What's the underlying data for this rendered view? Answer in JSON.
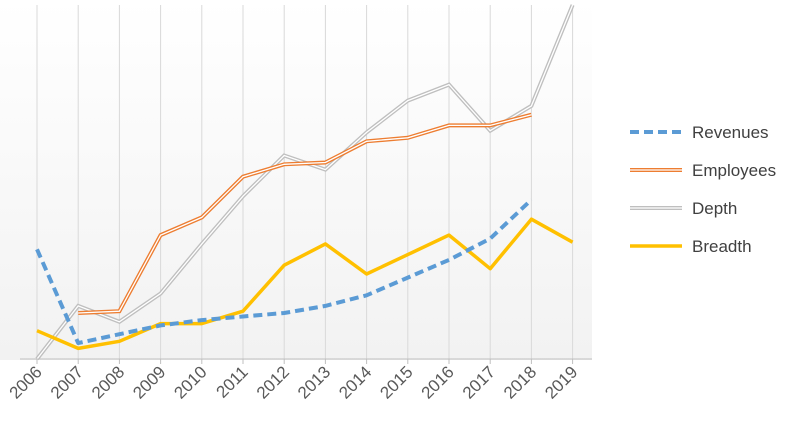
{
  "chart_data": {
    "type": "line",
    "x": [
      "2006",
      "2007",
      "2008",
      "2009",
      "2010",
      "2011",
      "2012",
      "2013",
      "2014",
      "2015",
      "2016",
      "2017",
      "2018",
      "2019"
    ],
    "ylim": [
      0,
      100
    ],
    "grid": "vertical lines at each category",
    "legend_position": "right",
    "series": [
      {
        "name": "Revenues",
        "color": "#5B9BD5",
        "style": "dashed",
        "values": [
          31,
          4.5,
          7,
          9.5,
          11,
          12,
          13,
          15,
          18,
          23,
          28,
          34,
          45,
          null
        ]
      },
      {
        "name": "Employees",
        "color": "#ED7D31",
        "style": "solid-double",
        "values": [
          null,
          13,
          13.5,
          35,
          40,
          51.5,
          55,
          55.5,
          61.5,
          62.5,
          66,
          66,
          69,
          null
        ]
      },
      {
        "name": "Depth",
        "color": "#BFBFBF",
        "style": "solid-double",
        "values": [
          0,
          15,
          10.5,
          18.5,
          32.5,
          46,
          57.5,
          53.5,
          64,
          73,
          77.5,
          64.5,
          71.5,
          100
        ]
      },
      {
        "name": "Breadth",
        "color": "#FFC000",
        "style": "solid",
        "values": [
          8,
          3,
          5,
          10,
          10,
          13.5,
          26.5,
          32.5,
          24,
          29.5,
          35,
          25.5,
          39.5,
          33
        ]
      }
    ]
  }
}
